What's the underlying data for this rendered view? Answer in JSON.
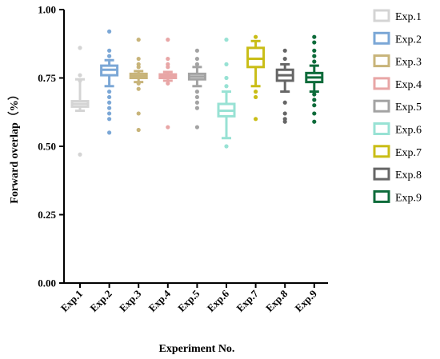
{
  "chart_data": {
    "type": "box",
    "title": "",
    "xlabel": "Experiment No.",
    "ylabel": "Forward overlap（%）",
    "ylim": [
      0,
      1
    ],
    "yticks": [
      "0.00",
      "0.25",
      "0.50",
      "0.75",
      "1.00"
    ],
    "legend_position": "right",
    "categories": [
      "Exp.1",
      "Exp.2",
      "Exp.3",
      "Exp.4",
      "Exp.5",
      "Exp.6",
      "Exp.7",
      "Exp.8",
      "Exp.9"
    ],
    "series": [
      {
        "name": "Exp.1",
        "color": "#d4d4d4",
        "whisker_low": 0.63,
        "q1": 0.645,
        "median": 0.655,
        "q3": 0.665,
        "whisker_high": 0.745,
        "outliers": [
          0.47,
          0.74,
          0.76,
          0.86
        ]
      },
      {
        "name": "Exp.2",
        "color": "#7ba7d6",
        "whisker_low": 0.72,
        "q1": 0.76,
        "median": 0.78,
        "q3": 0.795,
        "whisker_high": 0.815,
        "outliers": [
          0.55,
          0.6,
          0.62,
          0.64,
          0.66,
          0.68,
          0.7,
          0.83,
          0.85,
          0.92
        ]
      },
      {
        "name": "Exp.3",
        "color": "#c8b47a",
        "whisker_low": 0.735,
        "q1": 0.75,
        "median": 0.757,
        "q3": 0.765,
        "whisker_high": 0.775,
        "outliers": [
          0.56,
          0.62,
          0.71,
          0.73,
          0.79,
          0.8,
          0.82,
          0.89
        ]
      },
      {
        "name": "Exp.4",
        "color": "#e8a6a6",
        "whisker_low": 0.74,
        "q1": 0.75,
        "median": 0.756,
        "q3": 0.763,
        "whisker_high": 0.772,
        "outliers": [
          0.57,
          0.73,
          0.79,
          0.8,
          0.82,
          0.89
        ]
      },
      {
        "name": "Exp.5",
        "color": "#a3a3a3",
        "whisker_low": 0.72,
        "q1": 0.745,
        "median": 0.755,
        "q3": 0.765,
        "whisker_high": 0.79,
        "outliers": [
          0.57,
          0.64,
          0.66,
          0.68,
          0.7,
          0.8,
          0.82,
          0.85
        ]
      },
      {
        "name": "Exp.6",
        "color": "#98e2d4",
        "whisker_low": 0.53,
        "q1": 0.61,
        "median": 0.63,
        "q3": 0.655,
        "whisker_high": 0.7,
        "outliers": [
          0.5,
          0.72,
          0.75,
          0.8,
          0.89
        ]
      },
      {
        "name": "Exp.7",
        "color": "#c9bd16",
        "whisker_low": 0.72,
        "q1": 0.79,
        "median": 0.82,
        "q3": 0.86,
        "whisker_high": 0.885,
        "outliers": [
          0.6,
          0.68,
          0.7,
          0.9
        ]
      },
      {
        "name": "Exp.8",
        "color": "#666666",
        "whisker_low": 0.7,
        "q1": 0.74,
        "median": 0.76,
        "q3": 0.78,
        "whisker_high": 0.8,
        "outliers": [
          0.59,
          0.6,
          0.62,
          0.66,
          0.82,
          0.85
        ]
      },
      {
        "name": "Exp.9",
        "color": "#0d6b3a",
        "whisker_low": 0.7,
        "q1": 0.735,
        "median": 0.752,
        "q3": 0.768,
        "whisker_high": 0.795,
        "outliers": [
          0.59,
          0.62,
          0.65,
          0.67,
          0.69,
          0.81,
          0.83,
          0.85,
          0.88,
          0.9
        ]
      }
    ]
  }
}
